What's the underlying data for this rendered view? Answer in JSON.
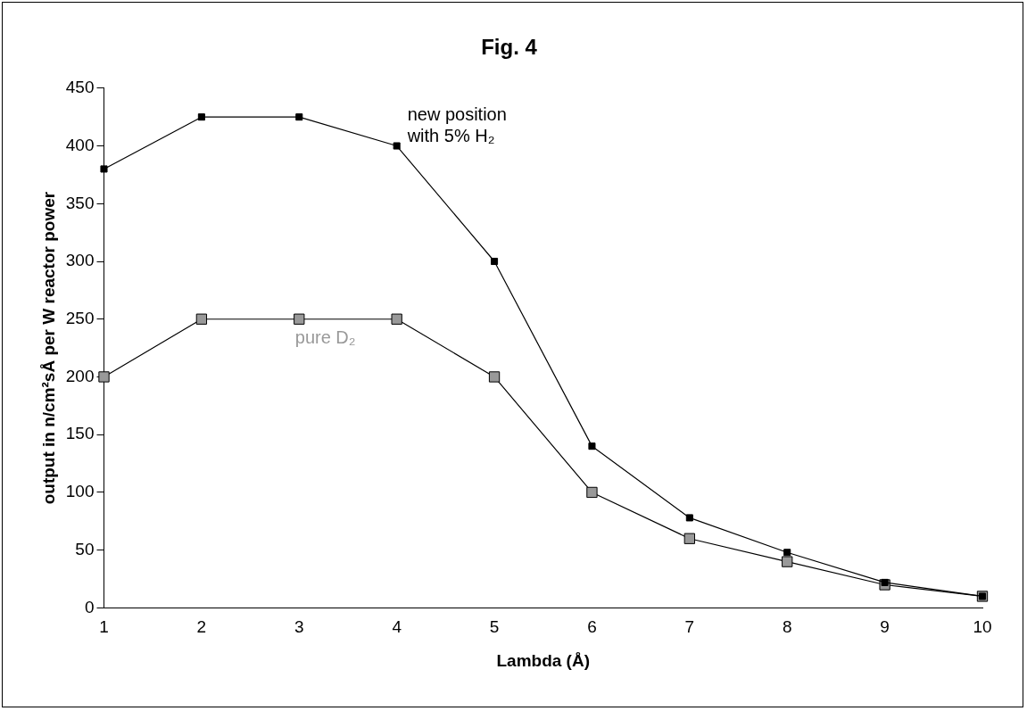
{
  "chart_data": {
    "type": "line",
    "title": "Fig. 4",
    "xlabel": "Lambda (Å)",
    "ylabel": "output in n/cm²sÅ per W reactor power",
    "categories": [
      "1",
      "2",
      "3",
      "4",
      "5",
      "6",
      "7",
      "8",
      "9",
      "10"
    ],
    "series": [
      {
        "name": "new position with 5% H₂",
        "color": "#000000",
        "values": [
          380,
          425,
          425,
          400,
          300,
          140,
          78,
          48,
          22,
          10
        ]
      },
      {
        "name": "pure D₂",
        "color": "#999999",
        "values": [
          200,
          250,
          250,
          250,
          200,
          100,
          60,
          40,
          20,
          10
        ]
      }
    ],
    "ylim": [
      0,
      450
    ],
    "yticks": [
      0,
      50,
      100,
      150,
      200,
      250,
      300,
      350,
      400,
      450
    ],
    "grid": false,
    "legend": false,
    "marker": "square",
    "line_style": "solid"
  }
}
